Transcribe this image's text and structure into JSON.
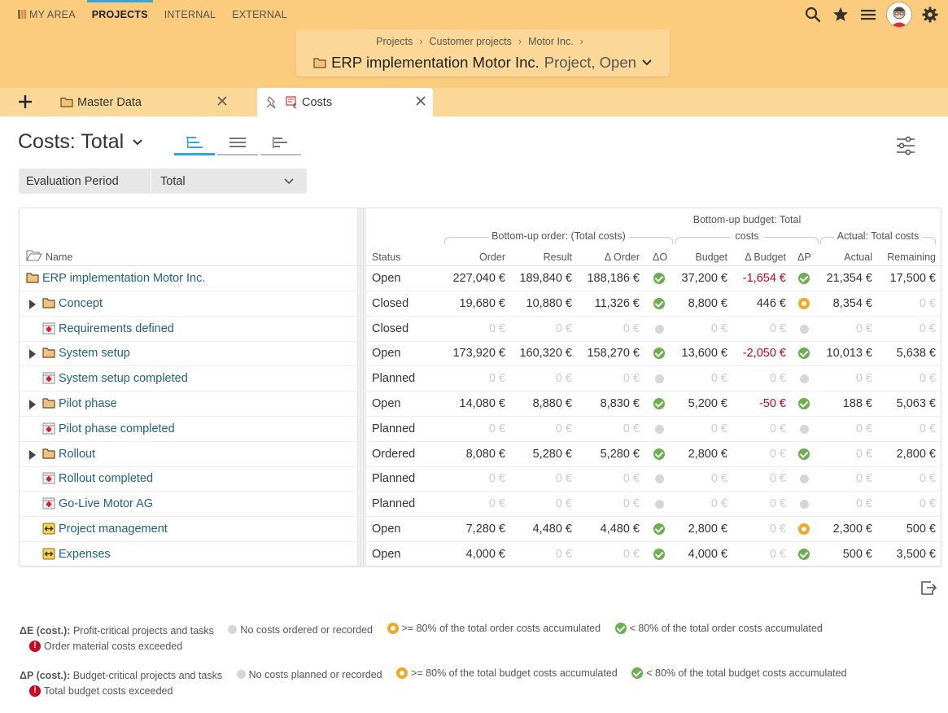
{
  "nav": {
    "tabs": [
      {
        "label": "MY AREA",
        "active": false
      },
      {
        "label": "PROJECTS",
        "active": true
      },
      {
        "label": "INTERNAL",
        "active": false
      },
      {
        "label": "EXTERNAL",
        "active": false
      }
    ]
  },
  "breadcrumb": {
    "items": [
      "Projects",
      "Customer projects",
      "Motor Inc."
    ],
    "title": "ERP implementation Motor Inc.",
    "subtitle": "Project, Open"
  },
  "doc_tabs": [
    {
      "label": "Master Data",
      "active": false
    },
    {
      "label": "Costs",
      "active": true
    }
  ],
  "view": {
    "title": "Costs: Total",
    "period_label": "Evaluation Period",
    "period_value": "Total"
  },
  "table": {
    "name_header": "Name",
    "status_header": "Status",
    "group_headers": {
      "order": "Bottom-up order: (Total costs)",
      "budget_line1": "Bottom-up budget: Total",
      "budget_line2": "costs",
      "actual": "Actual: Total costs"
    },
    "columns": [
      "Order",
      "Result",
      "Δ Order",
      "ΔO",
      "Budget",
      "Δ Budget",
      "ΔP",
      "Actual",
      "Remaining"
    ],
    "rows": [
      {
        "name": "ERP implementation Motor Inc.",
        "type": "project",
        "expand": false,
        "indent": 0,
        "status": "Open",
        "order": "227,040 €",
        "result": "189,840 €",
        "dorder": "188,186 €",
        "do": "green",
        "budget": "37,200 €",
        "dbudget": "-1,654 €",
        "dbudget_neg": true,
        "dp": "green",
        "actual": "21,354 €",
        "remaining": "17,500 €"
      },
      {
        "name": "Concept",
        "type": "folder",
        "expand": true,
        "indent": 1,
        "status": "Closed",
        "order": "19,680 €",
        "result": "10,880 €",
        "dorder": "11,326 €",
        "do": "green",
        "budget": "8,800 €",
        "dbudget": "446 €",
        "dbudget_neg": false,
        "dp": "orange",
        "actual": "8,354 €",
        "remaining": "0 €"
      },
      {
        "name": "Requirements defined",
        "type": "milestone",
        "expand": false,
        "indent": 1,
        "status": "Closed",
        "order": "0 €",
        "result": "0 €",
        "dorder": "0 €",
        "do": "gray",
        "budget": "0 €",
        "dbudget": "0 €",
        "dbudget_neg": false,
        "dp": "gray",
        "actual": "0 €",
        "remaining": "0 €"
      },
      {
        "name": "System setup",
        "type": "folder",
        "expand": true,
        "indent": 1,
        "status": "Open",
        "order": "173,920 €",
        "result": "160,320 €",
        "dorder": "158,270 €",
        "do": "green",
        "budget": "13,600 €",
        "dbudget": "-2,050 €",
        "dbudget_neg": true,
        "dp": "green",
        "actual": "10,013 €",
        "remaining": "5,638 €"
      },
      {
        "name": "System setup completed",
        "type": "milestone",
        "expand": false,
        "indent": 1,
        "status": "Planned",
        "order": "0 €",
        "result": "0 €",
        "dorder": "0 €",
        "do": "gray",
        "budget": "0 €",
        "dbudget": "0 €",
        "dbudget_neg": false,
        "dp": "gray",
        "actual": "0 €",
        "remaining": "0 €"
      },
      {
        "name": "Pilot phase",
        "type": "folder",
        "expand": true,
        "indent": 1,
        "status": "Open",
        "order": "14,080 €",
        "result": "8,880 €",
        "dorder": "8,830 €",
        "do": "green",
        "budget": "5,200 €",
        "dbudget": "-50 €",
        "dbudget_neg": true,
        "dp": "green",
        "actual": "188 €",
        "remaining": "5,063 €"
      },
      {
        "name": "Pilot phase completed",
        "type": "milestone",
        "expand": false,
        "indent": 1,
        "status": "Planned",
        "order": "0 €",
        "result": "0 €",
        "dorder": "0 €",
        "do": "gray",
        "budget": "0 €",
        "dbudget": "0 €",
        "dbudget_neg": false,
        "dp": "gray",
        "actual": "0 €",
        "remaining": "0 €"
      },
      {
        "name": "Rollout",
        "type": "folder",
        "expand": true,
        "indent": 1,
        "status": "Ordered",
        "order": "8,080 €",
        "result": "5,280 €",
        "dorder": "5,280 €",
        "do": "green",
        "budget": "2,800 €",
        "dbudget": "0 €",
        "dbudget_neg": false,
        "dp": "green",
        "actual": "0 €",
        "remaining": "2,800 €"
      },
      {
        "name": "Rollout completed",
        "type": "milestone",
        "expand": false,
        "indent": 1,
        "status": "Planned",
        "order": "0 €",
        "result": "0 €",
        "dorder": "0 €",
        "do": "gray",
        "budget": "0 €",
        "dbudget": "0 €",
        "dbudget_neg": false,
        "dp": "gray",
        "actual": "0 €",
        "remaining": "0 €"
      },
      {
        "name": "Go-Live Motor AG",
        "type": "milestone",
        "expand": false,
        "indent": 1,
        "status": "Planned",
        "order": "0 €",
        "result": "0 €",
        "dorder": "0 €",
        "do": "gray",
        "budget": "0 €",
        "dbudget": "0 €",
        "dbudget_neg": false,
        "dp": "gray",
        "actual": "0 €",
        "remaining": "0 €"
      },
      {
        "name": "Project management",
        "type": "recurring",
        "expand": false,
        "indent": 1,
        "status": "Open",
        "order": "7,280 €",
        "result": "4,480 €",
        "dorder": "4,480 €",
        "do": "green",
        "budget": "2,800 €",
        "dbudget": "0 €",
        "dbudget_neg": false,
        "dp": "orange",
        "actual": "2,300 €",
        "remaining": "500 €"
      },
      {
        "name": "Expenses",
        "type": "recurring",
        "expand": false,
        "indent": 1,
        "status": "Open",
        "order": "4,000 €",
        "result": "0 €",
        "dorder": "0 €",
        "do": "green",
        "budget": "4,000 €",
        "dbudget": "0 €",
        "dbudget_neg": false,
        "dp": "green",
        "actual": "500 €",
        "remaining": "3,500 €"
      }
    ]
  },
  "legend": {
    "e_label": "ΔE (cost.):",
    "e_text": "Profit-critical projects and tasks",
    "e_items": [
      "No costs ordered or recorded",
      ">= 80% of the total order costs accumulated",
      "< 80% of the total order costs accumulated"
    ],
    "e_exceeded": "Order material costs exceeded",
    "p_label": "ΔP (cost.):",
    "p_text": "Budget-critical projects and tasks",
    "p_items": [
      "No costs planned or recorded",
      ">= 80% of the total budget costs accumulated",
      "< 80% of the total budget costs accumulated"
    ],
    "p_exceeded": "Total budget costs exceeded"
  },
  "colors": {
    "header_bg": "#fbcb7e",
    "accent": "#3aa3d8",
    "link": "#1f5f8b",
    "negative": "#d0021b",
    "ok": "#6ab04c",
    "warn": "#f5a623"
  }
}
